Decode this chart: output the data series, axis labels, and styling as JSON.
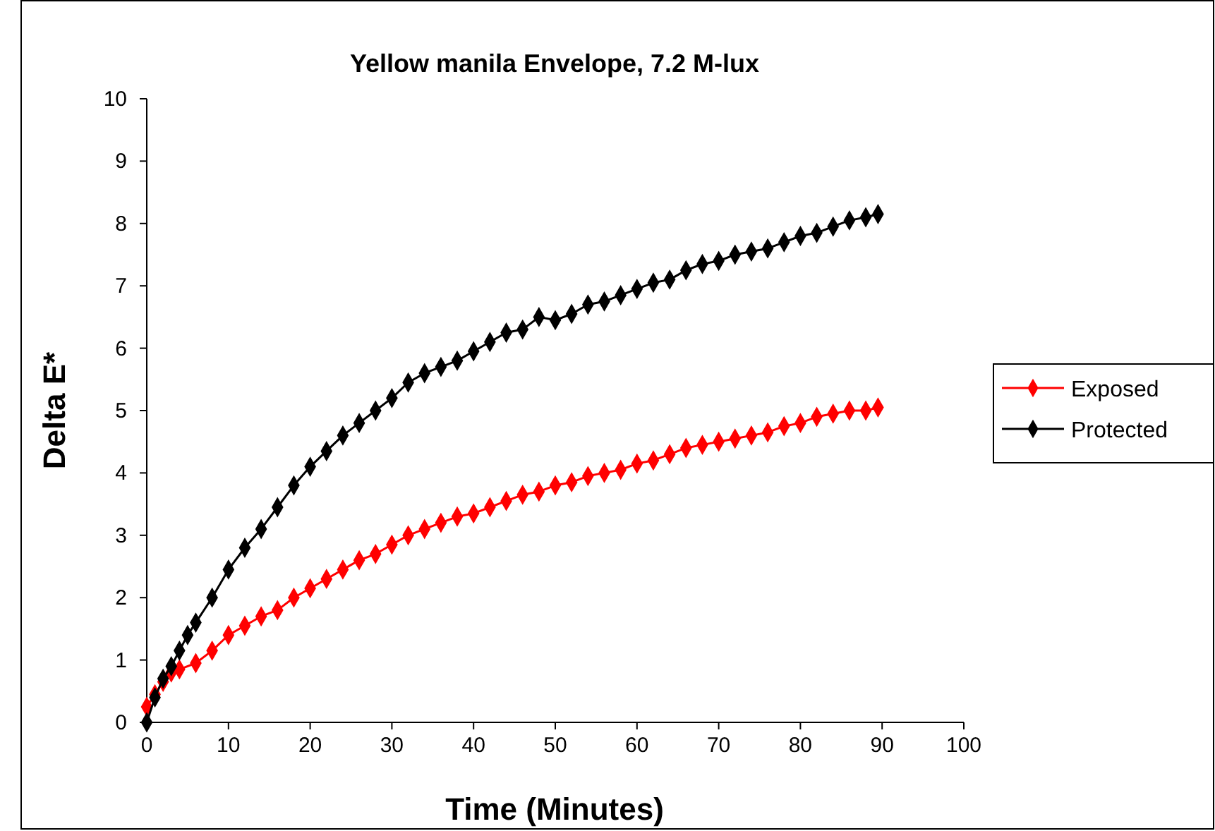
{
  "chart_data": {
    "type": "line",
    "title": "Yellow manila Envelope, 7.2 M-lux",
    "xlabel": "Time (Minutes)",
    "ylabel": "Delta E*",
    "xlim": [
      0,
      100
    ],
    "xticks": [
      0,
      10,
      20,
      30,
      40,
      50,
      60,
      70,
      80,
      90,
      100
    ],
    "ylim": [
      0,
      10
    ],
    "yticks": [
      0,
      1,
      2,
      3,
      4,
      5,
      6,
      7,
      8,
      9,
      10
    ],
    "grid": false,
    "legend": "right",
    "marker": "diamond",
    "line_style": "solid",
    "series": [
      {
        "name": "Exposed",
        "color": "#ff0000",
        "x": [
          0,
          1,
          2,
          3,
          4,
          6,
          8,
          10,
          12,
          14,
          16,
          18,
          20,
          22,
          24,
          26,
          28,
          30,
          32,
          34,
          36,
          38,
          40,
          42,
          44,
          46,
          48,
          50,
          52,
          54,
          56,
          58,
          60,
          62,
          64,
          66,
          68,
          70,
          72,
          74,
          76,
          78,
          80,
          82,
          84,
          86,
          88,
          89.5
        ],
        "values": [
          0.25,
          0.45,
          0.65,
          0.8,
          0.85,
          0.95,
          1.15,
          1.4,
          1.55,
          1.7,
          1.8,
          2.0,
          2.15,
          2.3,
          2.45,
          2.6,
          2.7,
          2.85,
          3.0,
          3.1,
          3.2,
          3.3,
          3.35,
          3.45,
          3.55,
          3.65,
          3.7,
          3.8,
          3.85,
          3.95,
          4.0,
          4.05,
          4.15,
          4.2,
          4.3,
          4.4,
          4.45,
          4.5,
          4.55,
          4.6,
          4.65,
          4.75,
          4.8,
          4.9,
          4.95,
          5.0,
          5.0,
          5.05
        ]
      },
      {
        "name": "Protected",
        "color": "#000000",
        "x": [
          0,
          1,
          2,
          3,
          4,
          5,
          6,
          8,
          10,
          12,
          14,
          16,
          18,
          20,
          22,
          24,
          26,
          28,
          30,
          32,
          34,
          36,
          38,
          40,
          42,
          44,
          46,
          48,
          50,
          52,
          54,
          56,
          58,
          60,
          62,
          64,
          66,
          68,
          70,
          72,
          74,
          76,
          78,
          80,
          82,
          84,
          86,
          88,
          89.5
        ],
        "values": [
          0,
          0.4,
          0.7,
          0.9,
          1.15,
          1.4,
          1.6,
          2.0,
          2.45,
          2.8,
          3.1,
          3.45,
          3.8,
          4.1,
          4.35,
          4.6,
          4.8,
          5.0,
          5.2,
          5.45,
          5.6,
          5.7,
          5.8,
          5.95,
          6.1,
          6.25,
          6.3,
          6.5,
          6.45,
          6.55,
          6.7,
          6.75,
          6.85,
          6.95,
          7.05,
          7.1,
          7.25,
          7.35,
          7.4,
          7.5,
          7.55,
          7.6,
          7.7,
          7.8,
          7.85,
          7.95,
          8.05,
          8.1,
          8.15
        ]
      }
    ]
  }
}
